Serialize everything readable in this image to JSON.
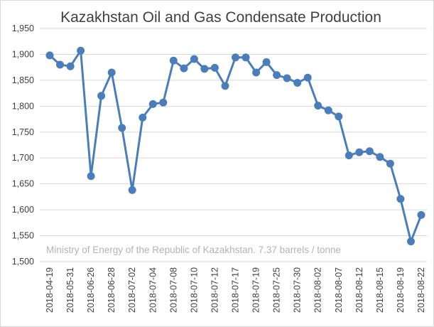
{
  "chart_data": {
    "type": "line",
    "title": "Kazakhstan Oil and Gas Condensate Production",
    "annotation": "Ministry of Energy of the Republic of Kazakhstan. 7.37 barrels / tonne",
    "xlabel": "",
    "ylabel": "",
    "ylim": [
      1500,
      1950
    ],
    "y_ticks": [
      "1,500",
      "1,550",
      "1,600",
      "1,650",
      "1,700",
      "1,750",
      "1,800",
      "1,850",
      "1,900",
      "1,950"
    ],
    "x_tick_labels": [
      "2018-04-19",
      "2018-05-31",
      "2018-06-26",
      "2018-06-28",
      "2018-07-02",
      "2018-07-04",
      "2018-07-08",
      "2018-07-10",
      "2018-07-12",
      "2018-07-17",
      "2018-07-19",
      "2018-07-25",
      "2018-07-30",
      "2018-08-02",
      "2018-08-07",
      "2018-08-12",
      "2018-08-15",
      "2018-08-19",
      "2018-08-22"
    ],
    "grid": true,
    "legend": "none",
    "series_color": "#4a7ebb",
    "series": [
      {
        "values": [
          1898,
          1880,
          1877,
          1907,
          1665,
          1820,
          1865,
          1758,
          1638,
          1778,
          1804,
          1807,
          1888,
          1873,
          1891,
          1872,
          1874,
          1839,
          1894,
          1894,
          1865,
          1885,
          1860,
          1854,
          1845,
          1855,
          1801,
          1792,
          1780,
          1705,
          1711,
          1713,
          1702,
          1689,
          1621,
          1539,
          1590
        ]
      }
    ]
  }
}
